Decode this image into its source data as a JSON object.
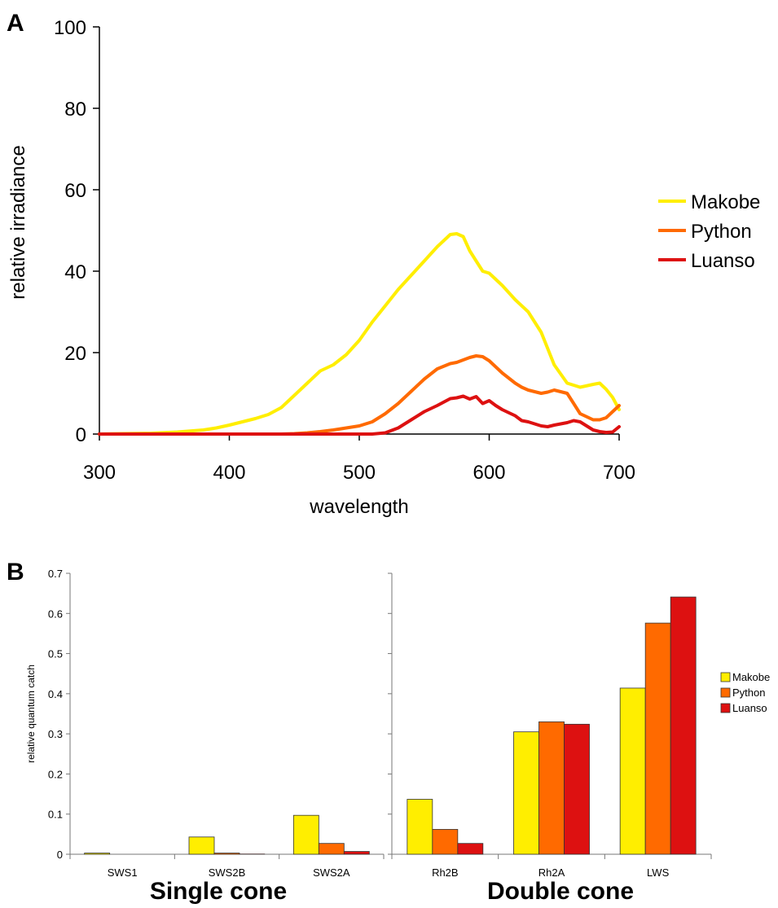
{
  "colors": {
    "Makobe": "#ffee00",
    "Python": "#ff6a00",
    "Luanso": "#dd1111"
  },
  "panel_labels": [
    "A",
    "B"
  ],
  "group_labels": [
    "Single cone",
    "Double cone"
  ],
  "chart_data": [
    {
      "type": "line",
      "panel": "A",
      "xlabel": "wavelength",
      "ylabel": "relative irradiance",
      "xlim": [
        300,
        700
      ],
      "ylim": [
        0,
        100
      ],
      "xticks": [
        300,
        400,
        500,
        600,
        700
      ],
      "yticks": [
        0,
        20,
        40,
        60,
        80,
        100
      ],
      "legend_position": "right",
      "x": [
        300,
        340,
        360,
        380,
        390,
        400,
        410,
        420,
        430,
        440,
        450,
        460,
        470,
        480,
        490,
        500,
        510,
        520,
        530,
        540,
        550,
        560,
        570,
        575,
        580,
        585,
        590,
        595,
        600,
        605,
        610,
        620,
        625,
        630,
        640,
        645,
        650,
        660,
        665,
        670,
        680,
        685,
        690,
        695,
        700
      ],
      "series": [
        {
          "name": "Makobe",
          "values": [
            0,
            0.2,
            0.5,
            1,
            1.5,
            2.2,
            3,
            3.8,
            4.8,
            6.5,
            9.5,
            12.5,
            15.5,
            17,
            19.5,
            23,
            27.5,
            31.5,
            35.5,
            39,
            42.5,
            46,
            49,
            49.2,
            48.5,
            45,
            42.5,
            40,
            39.5,
            38,
            36.5,
            33,
            31.5,
            30,
            25,
            21,
            17,
            12.5,
            12,
            11.5,
            12.2,
            12.5,
            11,
            9,
            6
          ]
        },
        {
          "name": "Python",
          "values": [
            0,
            0,
            0,
            0,
            0,
            0,
            0,
            0,
            0,
            0,
            0.1,
            0.3,
            0.6,
            1,
            1.5,
            2,
            3,
            5,
            7.5,
            10.5,
            13.5,
            16,
            17.3,
            17.6,
            18.2,
            18.8,
            19.2,
            19,
            18,
            16.5,
            15,
            12.5,
            11.5,
            10.8,
            10,
            10.3,
            10.8,
            10,
            7.5,
            5,
            3.5,
            3.5,
            4,
            5.5,
            7
          ]
        },
        {
          "name": "Luanso",
          "values": [
            0,
            0,
            0,
            0,
            0,
            0,
            0,
            0,
            0,
            0,
            0,
            0,
            0,
            0,
            0,
            0,
            0,
            0.3,
            1.5,
            3.5,
            5.5,
            7,
            8.7,
            8.9,
            9.3,
            8.6,
            9.2,
            7.5,
            8.2,
            7,
            6,
            4.5,
            3.3,
            3,
            2,
            1.8,
            2.2,
            2.8,
            3.3,
            3,
            1,
            0.6,
            0.4,
            0.5,
            1.8
          ]
        }
      ]
    },
    {
      "type": "bar",
      "panel": "B",
      "title": "Single cone",
      "ylabel": "relative quantum catch",
      "ylim": [
        0,
        0.7
      ],
      "yticks": [
        "0",
        "0.1",
        "0.2",
        "0.3",
        "0.4",
        "0.5",
        "0.6",
        "0.7"
      ],
      "categories": [
        "SWS1",
        "SWS2B",
        "SWS2A"
      ],
      "series": [
        {
          "name": "Makobe",
          "values": [
            0.003,
            0.043,
            0.097
          ]
        },
        {
          "name": "Python",
          "values": [
            0.0,
            0.003,
            0.027
          ]
        },
        {
          "name": "Luanso",
          "values": [
            0.0,
            0.001,
            0.007
          ]
        }
      ]
    },
    {
      "type": "bar",
      "panel": "B",
      "title": "Double cone",
      "ylim": [
        0,
        0.7
      ],
      "categories": [
        "Rh2B",
        "Rh2A",
        "LWS"
      ],
      "legend_position": "right",
      "series": [
        {
          "name": "Makobe",
          "values": [
            0.137,
            0.305,
            0.414
          ]
        },
        {
          "name": "Python",
          "values": [
            0.062,
            0.33,
            0.576
          ]
        },
        {
          "name": "Luanso",
          "values": [
            0.027,
            0.324,
            0.641
          ]
        }
      ]
    }
  ]
}
